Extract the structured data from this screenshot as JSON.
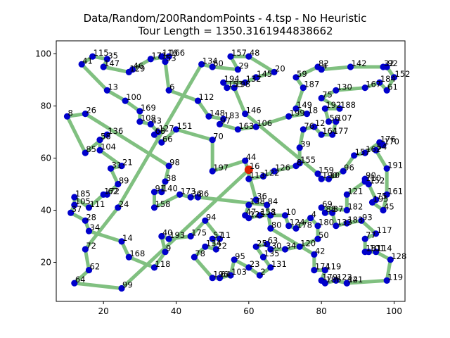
{
  "chart_data": {
    "type": "scatter",
    "title_line1": "Data/Random/200RandomPoints - 4.tsp - No Heuristic",
    "title_line2": "Tour Length = 1350.3161944838662",
    "xlabel": "",
    "ylabel": "",
    "xlim": [
      7,
      103
    ],
    "ylim": [
      5,
      105
    ],
    "xticks": [
      20,
      40,
      60,
      80,
      100
    ],
    "yticks": [
      20,
      40,
      60,
      80,
      100
    ],
    "grid": false,
    "tour_color": "#80c080",
    "point_color": "#0000cc",
    "start_color": "#dd2200",
    "start": [
      60,
      55.5
    ],
    "points": [
      {
        "label": "41",
        "x": 14,
        "y": 96
      },
      {
        "label": "115",
        "x": 17,
        "y": 99
      },
      {
        "label": "35",
        "x": 21,
        "y": 98
      },
      {
        "label": "147",
        "x": 20,
        "y": 95
      },
      {
        "label": "46",
        "x": 28,
        "y": 94
      },
      {
        "label": "129",
        "x": 27,
        "y": 93
      },
      {
        "label": "171",
        "x": 33,
        "y": 98
      },
      {
        "label": "116",
        "x": 36,
        "y": 99
      },
      {
        "label": "166",
        "x": 38,
        "y": 99
      },
      {
        "label": "53",
        "x": 37,
        "y": 97
      },
      {
        "label": "6",
        "x": 38,
        "y": 86
      },
      {
        "label": "13",
        "x": 21,
        "y": 86
      },
      {
        "label": "100",
        "x": 26,
        "y": 82
      },
      {
        "label": "169",
        "x": 30,
        "y": 78
      },
      {
        "label": "108",
        "x": 30,
        "y": 74
      },
      {
        "label": "43",
        "x": 33,
        "y": 73
      },
      {
        "label": "127",
        "x": 35,
        "y": 70
      },
      {
        "label": "151",
        "x": 40,
        "y": 71
      },
      {
        "label": "68",
        "x": 34,
        "y": 69
      },
      {
        "label": "66",
        "x": 36,
        "y": 66
      },
      {
        "label": "8",
        "x": 10,
        "y": 76
      },
      {
        "label": "26",
        "x": 15,
        "y": 77
      },
      {
        "label": "58",
        "x": 19,
        "y": 67
      },
      {
        "label": "136",
        "x": 21,
        "y": 69
      },
      {
        "label": "85",
        "x": 15,
        "y": 62
      },
      {
        "label": "104",
        "x": 19,
        "y": 63
      },
      {
        "label": "31",
        "x": 22,
        "y": 56
      },
      {
        "label": "21",
        "x": 25,
        "y": 57
      },
      {
        "label": "89",
        "x": 24,
        "y": 50
      },
      {
        "label": "172",
        "x": 20,
        "y": 46
      },
      {
        "label": "62",
        "x": 21,
        "y": 46
      },
      {
        "label": "185",
        "x": 12,
        "y": 45
      },
      {
        "label": "105",
        "x": 12,
        "y": 42
      },
      {
        "label": "37",
        "x": 11,
        "y": 39
      },
      {
        "label": "111",
        "x": 16,
        "y": 41
      },
      {
        "label": "24",
        "x": 24,
        "y": 41
      },
      {
        "label": "28",
        "x": 15,
        "y": 36
      },
      {
        "label": "34",
        "x": 16,
        "y": 32
      },
      {
        "label": "72",
        "x": 15,
        "y": 25
      },
      {
        "label": "62",
        "x": 16,
        "y": 17
      },
      {
        "label": "64",
        "x": 12,
        "y": 12
      },
      {
        "label": "99",
        "x": 25,
        "y": 10
      },
      {
        "label": "14",
        "x": 25,
        "y": 28
      },
      {
        "label": "168",
        "x": 27,
        "y": 22
      },
      {
        "label": "118",
        "x": 34,
        "y": 18
      },
      {
        "label": "9",
        "x": 37,
        "y": 24
      },
      {
        "label": "40",
        "x": 36,
        "y": 30
      },
      {
        "label": "193",
        "x": 38,
        "y": 29
      },
      {
        "label": "91",
        "x": 34,
        "y": 47
      },
      {
        "label": "140",
        "x": 36,
        "y": 47
      },
      {
        "label": "38",
        "x": 37,
        "y": 51
      },
      {
        "label": "98",
        "x": 38,
        "y": 57
      },
      {
        "label": "158",
        "x": 34,
        "y": 41
      },
      {
        "label": "173",
        "x": 41,
        "y": 46
      },
      {
        "label": "36",
        "x": 44,
        "y": 45
      },
      {
        "label": "86",
        "x": 46,
        "y": 45
      },
      {
        "label": "94",
        "x": 48,
        "y": 36
      },
      {
        "label": "175",
        "x": 44,
        "y": 30
      },
      {
        "label": "57",
        "x": 50,
        "y": 29
      },
      {
        "label": "11",
        "x": 52,
        "y": 29
      },
      {
        "label": "134",
        "x": 48,
        "y": 26
      },
      {
        "label": "22",
        "x": 51,
        "y": 25
      },
      {
        "label": "78",
        "x": 45,
        "y": 22
      },
      {
        "label": "196",
        "x": 50,
        "y": 14
      },
      {
        "label": "64",
        "x": 52,
        "y": 14
      },
      {
        "label": "103",
        "x": 55,
        "y": 15
      },
      {
        "label": "95",
        "x": 56,
        "y": 21
      },
      {
        "label": "23",
        "x": 60,
        "y": 18
      },
      {
        "label": "2",
        "x": 63,
        "y": 15
      },
      {
        "label": "131",
        "x": 66,
        "y": 18
      },
      {
        "label": "135",
        "x": 64,
        "y": 22
      },
      {
        "label": "25",
        "x": 62,
        "y": 26
      },
      {
        "label": "63",
        "x": 65,
        "y": 27
      },
      {
        "label": "30",
        "x": 66,
        "y": 25
      },
      {
        "label": "34",
        "x": 70,
        "y": 25
      },
      {
        "label": "120",
        "x": 74,
        "y": 26
      },
      {
        "label": "42",
        "x": 78,
        "y": 23
      },
      {
        "label": "50",
        "x": 79,
        "y": 29
      },
      {
        "label": "174",
        "x": 78,
        "y": 17
      },
      {
        "label": "119",
        "x": 81,
        "y": 17
      },
      {
        "label": "179",
        "x": 80,
        "y": 13
      },
      {
        "label": "186",
        "x": 81,
        "y": 12
      },
      {
        "label": "122",
        "x": 84,
        "y": 13
      },
      {
        "label": "141",
        "x": 87,
        "y": 12
      },
      {
        "label": "32",
        "x": 87,
        "y": 12
      },
      {
        "label": "119",
        "x": 98,
        "y": 13
      },
      {
        "label": "128",
        "x": 99,
        "y": 21
      },
      {
        "label": "114",
        "x": 95,
        "y": 24
      },
      {
        "label": "181",
        "x": 92,
        "y": 24
      },
      {
        "label": "101",
        "x": 93,
        "y": 24
      },
      {
        "label": "117",
        "x": 95,
        "y": 31
      },
      {
        "label": "77",
        "x": 92,
        "y": 29
      },
      {
        "label": "93",
        "x": 91,
        "y": 36
      },
      {
        "label": "183",
        "x": 87,
        "y": 35
      },
      {
        "label": "133",
        "x": 84,
        "y": 34
      },
      {
        "label": "45",
        "x": 97,
        "y": 40
      },
      {
        "label": "161",
        "x": 98,
        "y": 46
      },
      {
        "label": "75",
        "x": 95,
        "y": 44
      },
      {
        "label": "195",
        "x": 94,
        "y": 43
      },
      {
        "label": "182",
        "x": 87,
        "y": 40
      },
      {
        "label": "121",
        "x": 87,
        "y": 46
      },
      {
        "label": "90",
        "x": 92,
        "y": 52
      },
      {
        "label": "110",
        "x": 92,
        "y": 51
      },
      {
        "label": "152",
        "x": 93,
        "y": 50
      },
      {
        "label": "191",
        "x": 98,
        "y": 56
      },
      {
        "label": "96",
        "x": 86,
        "y": 55
      },
      {
        "label": "159",
        "x": 79,
        "y": 54
      },
      {
        "label": "190",
        "x": 80,
        "y": 52
      },
      {
        "label": "10",
        "x": 82,
        "y": 52
      },
      {
        "label": "155",
        "x": 74,
        "y": 58
      },
      {
        "label": "8",
        "x": 73,
        "y": 57
      },
      {
        "label": "126",
        "x": 67,
        "y": 55
      },
      {
        "label": "122",
        "x": 64,
        "y": 53
      },
      {
        "label": "16",
        "x": 60,
        "y": 55.5
      },
      {
        "label": "113",
        "x": 60,
        "y": 52
      },
      {
        "label": "197",
        "x": 50,
        "y": 55
      },
      {
        "label": "44",
        "x": 59,
        "y": 59
      },
      {
        "label": "39",
        "x": 74,
        "y": 64
      },
      {
        "label": "157",
        "x": 89,
        "y": 61
      },
      {
        "label": "162",
        "x": 92,
        "y": 62
      },
      {
        "label": "176",
        "x": 96,
        "y": 66
      },
      {
        "label": "170",
        "x": 97,
        "y": 65
      },
      {
        "label": "54",
        "x": 95,
        "y": 63
      },
      {
        "label": "76",
        "x": 75,
        "y": 71
      },
      {
        "label": "12",
        "x": 78,
        "y": 72
      },
      {
        "label": "164",
        "x": 80,
        "y": 69
      },
      {
        "label": "177",
        "x": 83,
        "y": 69
      },
      {
        "label": "107",
        "x": 84,
        "y": 74
      },
      {
        "label": "56",
        "x": 82,
        "y": 74
      },
      {
        "label": "188",
        "x": 85,
        "y": 79
      },
      {
        "label": "192",
        "x": 81,
        "y": 79
      },
      {
        "label": "149",
        "x": 73,
        "y": 79
      },
      {
        "label": "18",
        "x": 76,
        "y": 77
      },
      {
        "label": "199",
        "x": 71,
        "y": 76
      },
      {
        "label": "75",
        "x": 80,
        "y": 83
      },
      {
        "label": "130",
        "x": 84,
        "y": 86
      },
      {
        "label": "187",
        "x": 75,
        "y": 87
      },
      {
        "label": "59",
        "x": 73,
        "y": 91
      },
      {
        "label": "20",
        "x": 67,
        "y": 93
      },
      {
        "label": "82",
        "x": 79,
        "y": 95
      },
      {
        "label": "4",
        "x": 80,
        "y": 94
      },
      {
        "label": "142",
        "x": 88,
        "y": 95
      },
      {
        "label": "92",
        "x": 98,
        "y": 95
      },
      {
        "label": "32",
        "x": 97,
        "y": 95
      },
      {
        "label": "152",
        "x": 100,
        "y": 91
      },
      {
        "label": "184",
        "x": 96,
        "y": 89
      },
      {
        "label": "167",
        "x": 92,
        "y": 87
      },
      {
        "label": "61",
        "x": 98,
        "y": 86
      },
      {
        "label": "145",
        "x": 62,
        "y": 91
      },
      {
        "label": "132",
        "x": 59,
        "y": 89
      },
      {
        "label": "29",
        "x": 57,
        "y": 94
      },
      {
        "label": "157",
        "x": 55,
        "y": 99
      },
      {
        "label": "48",
        "x": 60,
        "y": 99
      },
      {
        "label": "134",
        "x": 47,
        "y": 96
      },
      {
        "label": "60",
        "x": 50,
        "y": 95
      },
      {
        "label": "194",
        "x": 53,
        "y": 89
      },
      {
        "label": "153",
        "x": 54,
        "y": 87
      },
      {
        "label": "198",
        "x": 56,
        "y": 87
      },
      {
        "label": "112",
        "x": 46,
        "y": 82
      },
      {
        "label": "148",
        "x": 49,
        "y": 76
      },
      {
        "label": "183",
        "x": 53,
        "y": 75
      },
      {
        "label": "97",
        "x": 52,
        "y": 73
      },
      {
        "label": "70",
        "x": 50,
        "y": 67
      },
      {
        "label": "146",
        "x": 59,
        "y": 77
      },
      {
        "label": "106",
        "x": 62,
        "y": 72
      },
      {
        "label": "163",
        "x": 57,
        "y": 71
      },
      {
        "label": "36",
        "x": 62,
        "y": 44
      },
      {
        "label": "138",
        "x": 60,
        "y": 42
      },
      {
        "label": "84",
        "x": 65,
        "y": 42
      },
      {
        "label": "47",
        "x": 59,
        "y": 38
      },
      {
        "label": "125",
        "x": 60,
        "y": 37
      },
      {
        "label": "158",
        "x": 63,
        "y": 38
      },
      {
        "label": "1",
        "x": 66,
        "y": 38
      },
      {
        "label": "10",
        "x": 70,
        "y": 38
      },
      {
        "label": "80",
        "x": 66,
        "y": 33
      },
      {
        "label": "124",
        "x": 71,
        "y": 34
      },
      {
        "label": "178",
        "x": 73,
        "y": 33
      },
      {
        "label": "180",
        "x": 79,
        "y": 34
      },
      {
        "label": "4",
        "x": 77,
        "y": 37
      },
      {
        "label": "69",
        "x": 80,
        "y": 41
      },
      {
        "label": "88",
        "x": 81,
        "y": 39
      },
      {
        "label": "87",
        "x": 83,
        "y": 39
      }
    ]
  }
}
